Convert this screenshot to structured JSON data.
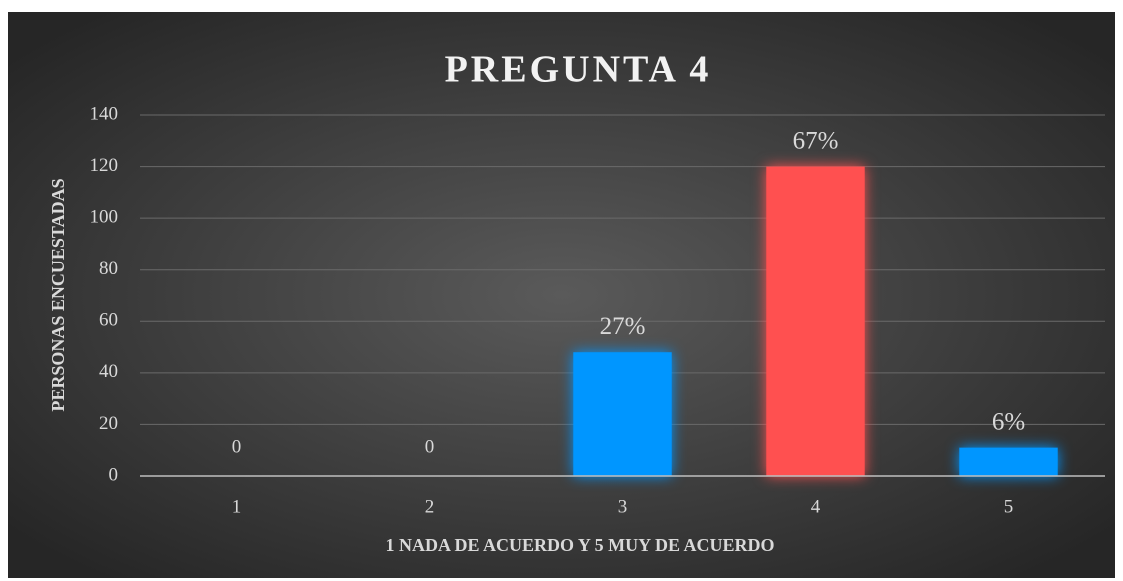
{
  "chart_data": {
    "type": "bar",
    "title": "PREGUNTA 4",
    "x_label": "1 NADA DE ACUERDO  Y 5 MUY DE ACUERDO",
    "y_label": "PERSONAS ENCUESTADAS",
    "categories": [
      "1",
      "2",
      "3",
      "4",
      "5"
    ],
    "values": [
      0,
      0,
      48,
      120,
      11
    ],
    "value_labels": [
      "0",
      "0",
      "27%",
      "67%",
      "6%"
    ],
    "colors": [
      "#0096ff",
      "#0096ff",
      "#0096ff",
      "#ff5050",
      "#0096ff"
    ],
    "ylim": [
      0,
      140
    ],
    "yticks": [
      0,
      20,
      40,
      60,
      80,
      100,
      120,
      140
    ],
    "grid": true
  }
}
